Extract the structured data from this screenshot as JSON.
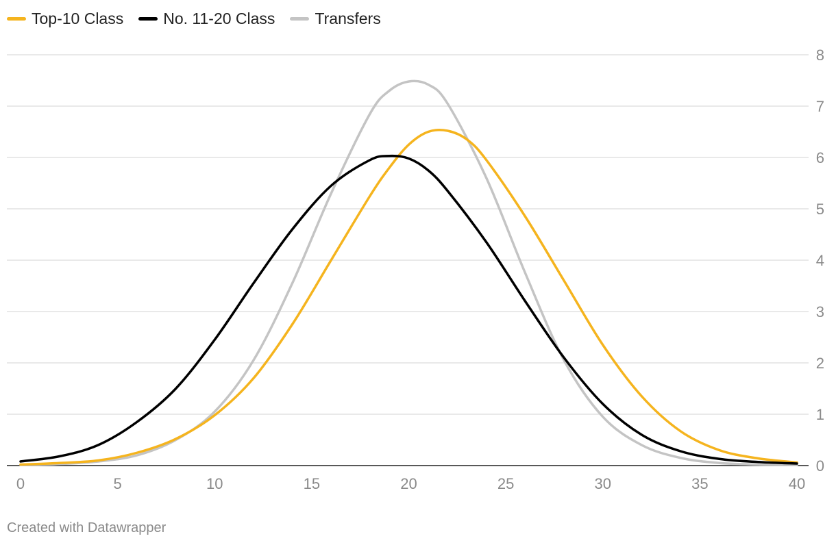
{
  "chart_data": {
    "type": "line",
    "title": "",
    "xlabel": "",
    "ylabel": "",
    "xlim": [
      0,
      40
    ],
    "ylim": [
      0,
      8
    ],
    "x_ticks": [
      0,
      5,
      10,
      15,
      20,
      25,
      30,
      35,
      40
    ],
    "y_ticks": [
      0,
      1,
      2,
      3,
      4,
      5,
      6,
      7,
      8
    ],
    "grid": true,
    "legend_position": "top-left",
    "series": [
      {
        "name": "Top-10 Class",
        "color": "#f5b41e",
        "x": [
          0,
          2,
          4,
          6,
          8,
          10,
          12,
          14,
          16,
          18,
          19,
          20,
          21,
          22,
          23,
          24,
          26,
          28,
          30,
          32,
          34,
          36,
          38,
          40
        ],
        "values": [
          0.02,
          0.05,
          0.1,
          0.25,
          0.52,
          0.98,
          1.7,
          2.75,
          4.0,
          5.25,
          5.8,
          6.25,
          6.5,
          6.52,
          6.35,
          5.95,
          4.85,
          3.6,
          2.35,
          1.35,
          0.67,
          0.3,
          0.14,
          0.06
        ]
      },
      {
        "name": "No. 11-20 Class",
        "color": "#000000",
        "x": [
          0,
          2,
          4,
          6,
          8,
          10,
          12,
          14,
          16,
          18,
          19,
          20,
          21,
          22,
          24,
          26,
          28,
          30,
          32,
          34,
          36,
          38,
          40
        ],
        "values": [
          0.08,
          0.18,
          0.4,
          0.85,
          1.5,
          2.45,
          3.55,
          4.6,
          5.45,
          5.95,
          6.03,
          5.98,
          5.75,
          5.35,
          4.35,
          3.2,
          2.1,
          1.2,
          0.6,
          0.28,
          0.13,
          0.07,
          0.04
        ]
      },
      {
        "name": "Transfers",
        "color": "#c4c4c4",
        "x": [
          0,
          2,
          4,
          6,
          8,
          10,
          12,
          14,
          16,
          18,
          19,
          20,
          21,
          22,
          24,
          26,
          28,
          30,
          32,
          34,
          36,
          38,
          40
        ],
        "values": [
          0.01,
          0.03,
          0.08,
          0.2,
          0.5,
          1.05,
          2.05,
          3.55,
          5.3,
          6.85,
          7.3,
          7.48,
          7.42,
          7.05,
          5.6,
          3.75,
          2.05,
          0.95,
          0.4,
          0.15,
          0.05,
          0.02,
          0.01
        ]
      }
    ]
  },
  "footer": {
    "credit": "Created with Datawrapper"
  }
}
